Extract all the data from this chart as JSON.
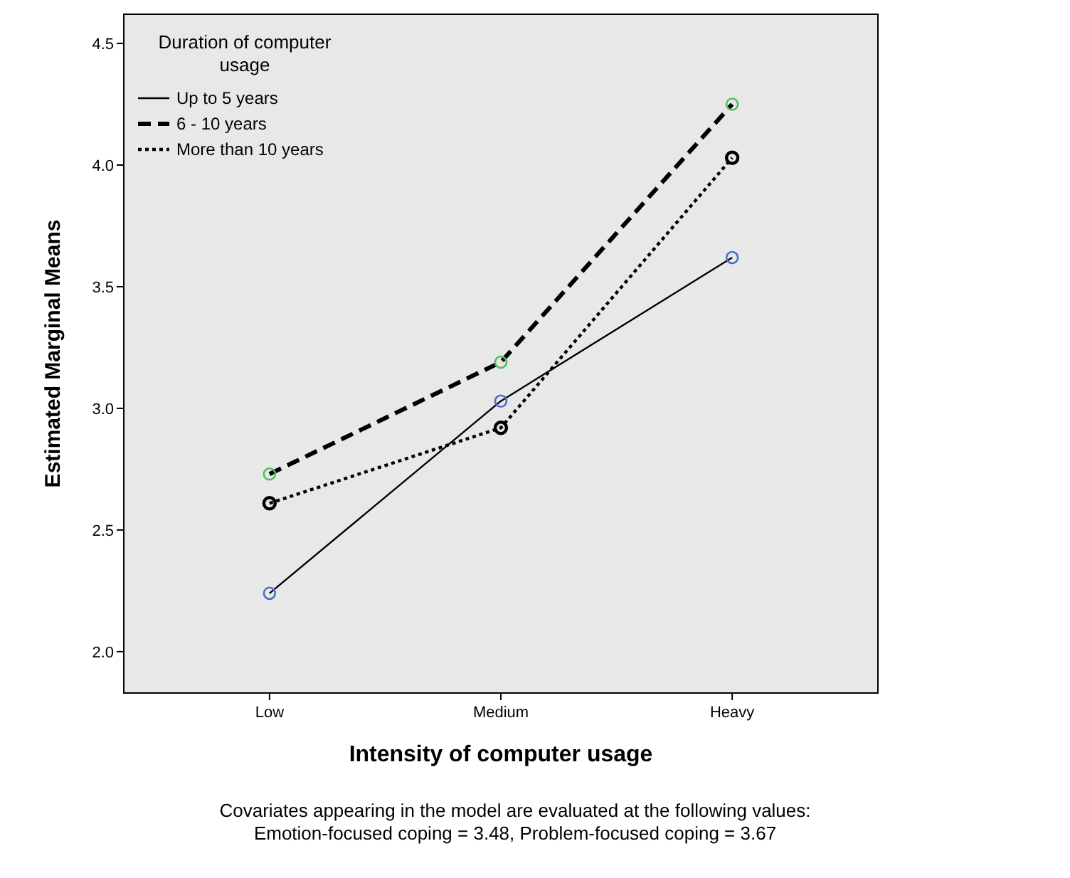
{
  "chart_data": {
    "type": "line",
    "xlabel": "Intensity of computer usage",
    "ylabel": "Estimated Marginal Means",
    "legend_title": "Duration of computer usage",
    "categories": [
      "Low",
      "Medium",
      "Heavy"
    ],
    "series": [
      {
        "name": "Up to 5 years",
        "color": "#4a6fc9",
        "values": [
          2.24,
          3.03,
          3.62
        ],
        "line_style": "solid"
      },
      {
        "name": "6 - 10 years",
        "color": "#4fbf5a",
        "values": [
          2.73,
          3.19,
          4.25
        ],
        "line_style": "dashed"
      },
      {
        "name": "More than 10 years",
        "color": "#000000",
        "values": [
          2.61,
          2.92,
          4.03
        ],
        "line_style": "dotted"
      }
    ],
    "ylim": [
      1.83,
      4.62
    ],
    "yticks": [
      {
        "value": 2,
        "label": "2.0"
      },
      {
        "value": 2.5,
        "label": "2.5"
      },
      {
        "value": 3,
        "label": "3.0"
      },
      {
        "value": 3.5,
        "label": "3.5"
      },
      {
        "value": 4,
        "label": "4.0"
      },
      {
        "value": 4.5,
        "label": "4.5"
      }
    ],
    "grid": false,
    "legend": "top left",
    "marker": "circle",
    "annotations": [
      "Covariates appearing in the model are evaluated at the following values:",
      "Emotion-focused coping = 3.48, Problem-focused coping = 3.67"
    ]
  }
}
